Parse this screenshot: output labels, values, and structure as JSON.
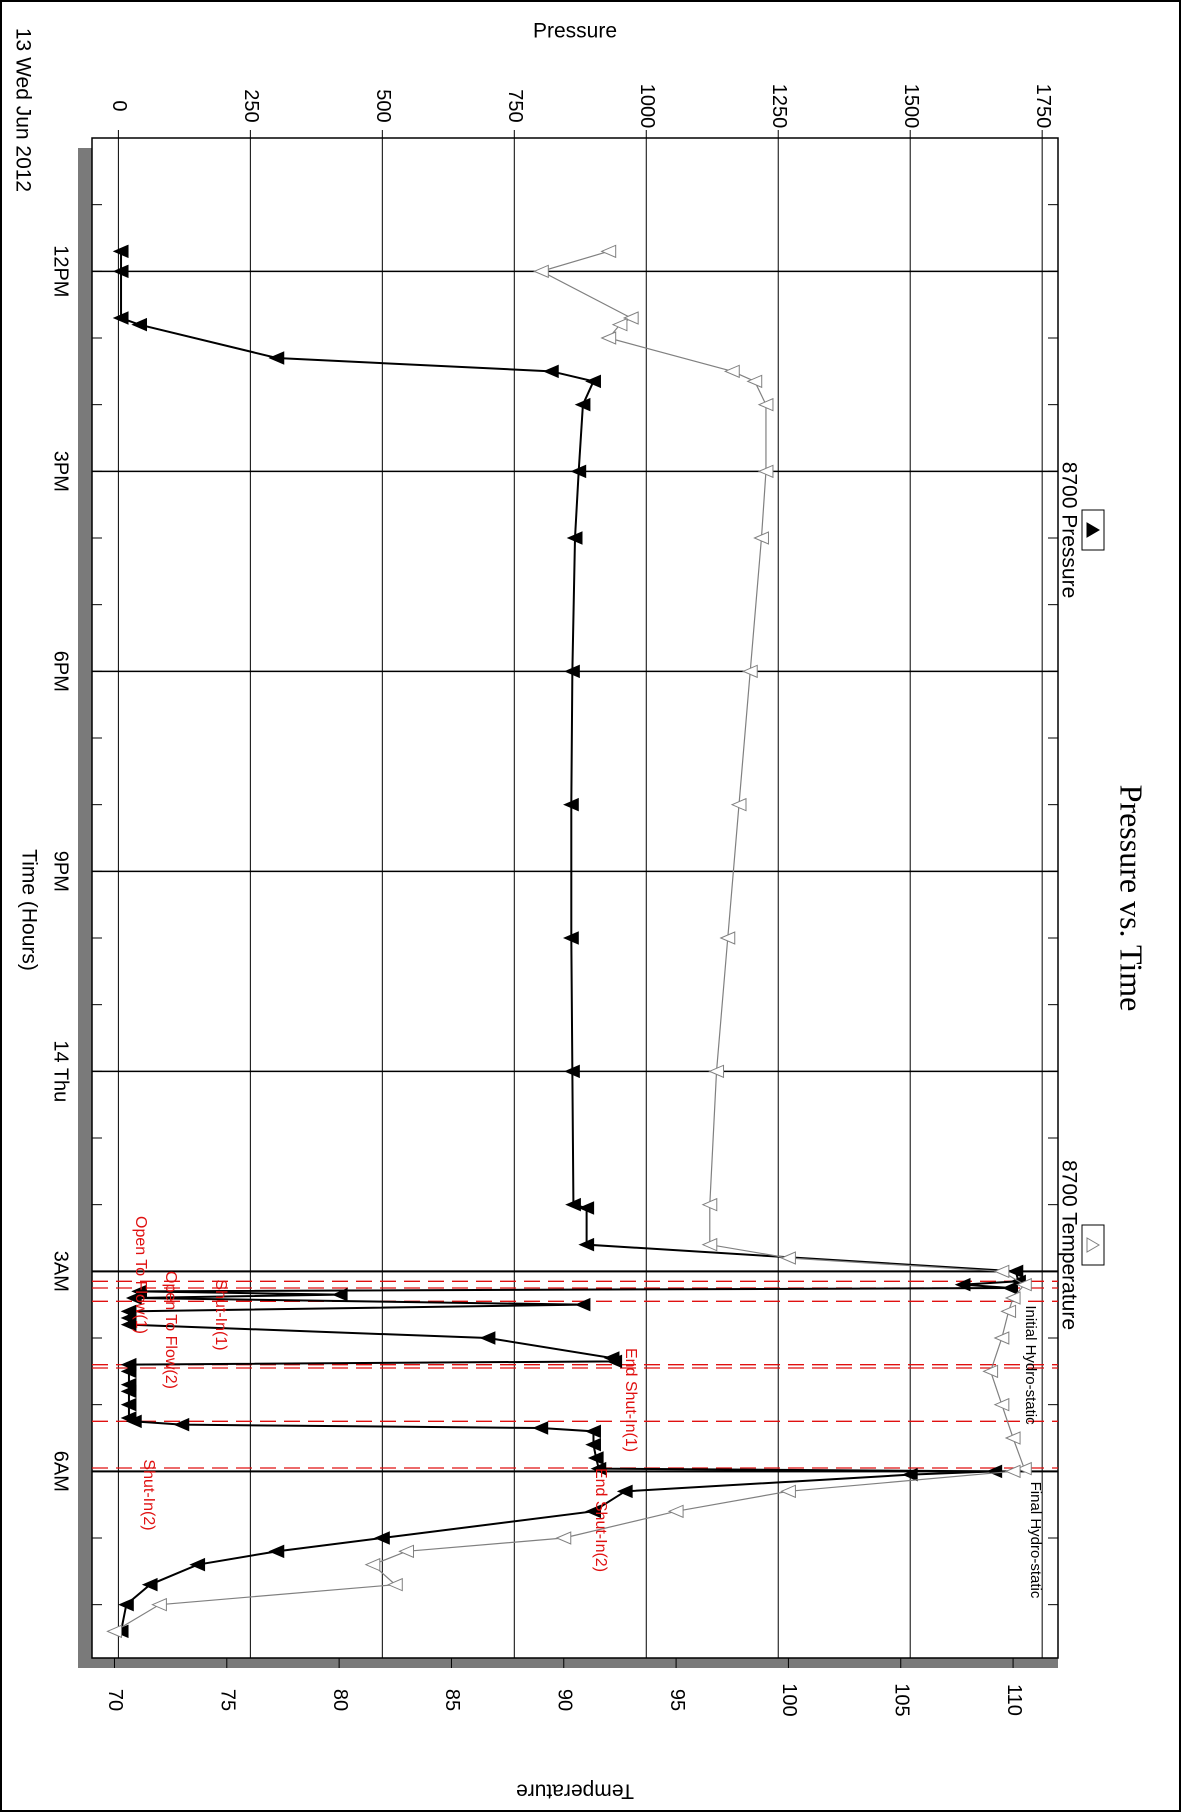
{
  "chart_data": {
    "type": "line",
    "title": "Pressure vs. Time",
    "xlabel": "Time (Hours)",
    "date_label": "13 Wed Jun 2012",
    "y_left_label": "Pressure",
    "y_right_label": "Temperature",
    "x_ticks": [
      "12PM",
      "3PM",
      "6PM",
      "9PM",
      "14 Thu",
      "3AM",
      "6AM"
    ],
    "x_tick_hours": [
      12,
      15,
      18,
      21,
      24,
      27,
      30
    ],
    "xlim_hours": [
      10,
      32.8
    ],
    "pressure_ticks": [
      "0",
      "250",
      "500",
      "750",
      "1000",
      "1250",
      "1500",
      "1750"
    ],
    "pressure_lim": [
      -50,
      1780
    ],
    "temperature_ticks": [
      "70",
      "75",
      "80",
      "85",
      "90",
      "95",
      "100",
      "105",
      "110"
    ],
    "temperature_lim": [
      69,
      112
    ],
    "grid": true,
    "legend": [
      {
        "name": "8700 Pressure",
        "marker": "filled-triangle",
        "color": "#000000"
      },
      {
        "name": "8700 Temperature",
        "marker": "hollow-triangle",
        "color": "#808080"
      }
    ],
    "series": [
      {
        "name": "8700 Pressure",
        "axis": "pressure",
        "color": "#000000",
        "x_hours": [
          11.7,
          12.0,
          12.7,
          12.8,
          13.3,
          13.5,
          13.65,
          14.0,
          15.0,
          16.0,
          18.0,
          20.0,
          22.0,
          24.0,
          26.0,
          26.05,
          26.6,
          27.0,
          27.15,
          27.2,
          27.25,
          27.3,
          27.35,
          27.4,
          27.5,
          27.6,
          27.7,
          27.8,
          28.0,
          28.3,
          28.35,
          28.4,
          28.5,
          28.7,
          28.8,
          29.0,
          29.2,
          29.25,
          29.3,
          29.35,
          29.4,
          29.6,
          29.8,
          29.96,
          30.0,
          30.05,
          30.3,
          30.6,
          31.0,
          31.2,
          31.4,
          31.7,
          32.0,
          32.4
        ],
        "values": [
          5,
          5,
          5,
          40,
          300,
          820,
          900,
          880,
          872,
          865,
          860,
          858,
          858,
          860,
          862,
          887,
          887,
          1700,
          1705,
          1600,
          1690,
          40,
          420,
          30,
          880,
          20,
          20,
          20,
          700,
          935,
          940,
          20,
          20,
          20,
          20,
          20,
          20,
          30,
          120,
          800,
          900,
          900,
          905,
          910,
          1660,
          1500,
          960,
          900,
          500,
          300,
          150,
          60,
          15,
          5
        ]
      },
      {
        "name": "8700 Temperature",
        "axis": "temperature",
        "color": "#808080",
        "x_hours": [
          11.7,
          12.0,
          12.7,
          12.8,
          13.0,
          13.5,
          13.65,
          14.0,
          15.0,
          16.0,
          18.0,
          20.0,
          22.0,
          24.0,
          26.0,
          26.6,
          26.8,
          27.0,
          27.2,
          27.4,
          27.6,
          28.0,
          28.5,
          29.0,
          29.5,
          29.96,
          30.0,
          30.3,
          30.6,
          31.0,
          31.2,
          31.4,
          31.7,
          32.0,
          32.4
        ],
        "values": [
          92,
          89,
          93,
          92.5,
          92,
          97.5,
          98.5,
          99,
          99,
          98.8,
          98.3,
          97.8,
          97.3,
          96.8,
          96.5,
          96.5,
          100,
          109.5,
          110.5,
          110,
          109.8,
          109.5,
          109,
          109.5,
          110,
          110.5,
          110,
          100,
          95,
          90,
          83,
          81.5,
          82.5,
          72,
          70
        ]
      }
    ],
    "annotations": [
      {
        "text": "Initial Hydro-static",
        "x_hours": 27.0,
        "color": "#000000"
      },
      {
        "text": "Open To Flow(1)",
        "x_hours": 27.25,
        "color": "#e01010"
      },
      {
        "text": "Shut-In(1)",
        "x_hours": 27.45,
        "color": "#e01010"
      },
      {
        "text": "End Shut-In(1)",
        "x_hours": 28.4,
        "color": "#e01010"
      },
      {
        "text": "Open To Flow(2)",
        "x_hours": 28.45,
        "color": "#e01010"
      },
      {
        "text": "Shut-In(2)",
        "x_hours": 29.25,
        "color": "#e01010"
      },
      {
        "text": "End Shut-In(2)",
        "x_hours": 29.95,
        "color": "#e01010"
      },
      {
        "text": "Final Hydro-static",
        "x_hours": 30.0,
        "color": "#000000"
      }
    ]
  }
}
